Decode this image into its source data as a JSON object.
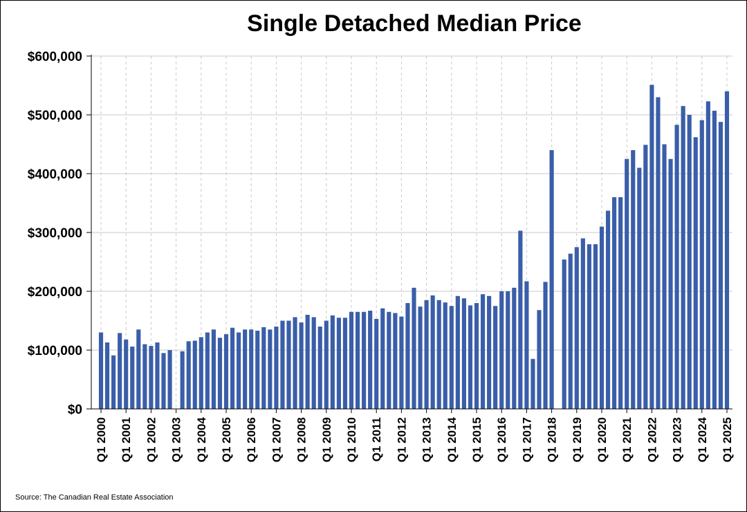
{
  "chart_data": {
    "type": "bar",
    "title": "Single Detached Median Price",
    "source": "Source: The Canadian Real Estate Association",
    "ylim": [
      0,
      600000
    ],
    "y_ticks": [
      "$0",
      "$100,000",
      "$200,000",
      "$300,000",
      "$400,000",
      "$500,000",
      "$600,000"
    ],
    "y_tick_values": [
      0,
      100000,
      200000,
      300000,
      400000,
      500000,
      600000
    ],
    "x_tick_labels": [
      "Q1 2000",
      "Q1 2001",
      "Q1 2002",
      "Q1 2003",
      "Q1 2004",
      "Q1 2005",
      "Q1 2006",
      "Q1 2007",
      "Q1 2008",
      "Q1 2009",
      "Q1 2010",
      "Q1 2011",
      "Q1 2012",
      "Q1 2013",
      "Q1 2014",
      "Q1 2015",
      "Q1 2016",
      "Q1 2017",
      "Q1 2018",
      "Q1 2019",
      "Q1 2020",
      "Q1 2021",
      "Q1 2022",
      "Q1 2023",
      "Q1 2024",
      "Q1 2025"
    ],
    "grid": "horizontal solid, vertical dashed at year ticks",
    "bar_color": "#3a5ea8",
    "categories": [
      "Q1 2000",
      "Q2 2000",
      "Q3 2000",
      "Q4 2000",
      "Q1 2001",
      "Q2 2001",
      "Q3 2001",
      "Q4 2001",
      "Q1 2002",
      "Q2 2002",
      "Q3 2002",
      "Q4 2002",
      "Q1 2003",
      "Q2 2003",
      "Q3 2003",
      "Q4 2003",
      "Q1 2004",
      "Q2 2004",
      "Q3 2004",
      "Q4 2004",
      "Q1 2005",
      "Q2 2005",
      "Q3 2005",
      "Q4 2005",
      "Q1 2006",
      "Q2 2006",
      "Q3 2006",
      "Q4 2006",
      "Q1 2007",
      "Q2 2007",
      "Q3 2007",
      "Q4 2007",
      "Q1 2008",
      "Q2 2008",
      "Q3 2008",
      "Q4 2008",
      "Q1 2009",
      "Q2 2009",
      "Q3 2009",
      "Q4 2009",
      "Q1 2010",
      "Q2 2010",
      "Q3 2010",
      "Q4 2010",
      "Q1 2011",
      "Q2 2011",
      "Q3 2011",
      "Q4 2011",
      "Q1 2012",
      "Q2 2012",
      "Q3 2012",
      "Q4 2012",
      "Q1 2013",
      "Q2 2013",
      "Q3 2013",
      "Q4 2013",
      "Q1 2014",
      "Q2 2014",
      "Q3 2014",
      "Q4 2014",
      "Q1 2015",
      "Q2 2015",
      "Q3 2015",
      "Q4 2015",
      "Q1 2016",
      "Q2 2016",
      "Q3 2016",
      "Q4 2016",
      "Q1 2017",
      "Q2 2017",
      "Q3 2017",
      "Q4 2017",
      "Q1 2018",
      "Q2 2018",
      "Q3 2018",
      "Q4 2018",
      "Q1 2019",
      "Q2 2019",
      "Q3 2019",
      "Q4 2019",
      "Q1 2020",
      "Q2 2020",
      "Q3 2020",
      "Q4 2020",
      "Q1 2021",
      "Q2 2021",
      "Q3 2021",
      "Q4 2021",
      "Q1 2022",
      "Q2 2022",
      "Q3 2022",
      "Q4 2022",
      "Q1 2023",
      "Q2 2023",
      "Q3 2023",
      "Q4 2023",
      "Q1 2024",
      "Q2 2024",
      "Q3 2024",
      "Q4 2024",
      "Q1 2025"
    ],
    "values": [
      130000,
      113000,
      91000,
      129000,
      118000,
      106000,
      135000,
      110000,
      107000,
      113000,
      95000,
      100000,
      null,
      98000,
      115000,
      116000,
      122000,
      130000,
      135000,
      121000,
      127000,
      138000,
      130000,
      135000,
      135000,
      133000,
      139000,
      135000,
      140000,
      150000,
      150000,
      156000,
      147000,
      160000,
      156000,
      140000,
      150000,
      159000,
      155000,
      155000,
      165000,
      165000,
      165000,
      167000,
      153000,
      171000,
      165000,
      163000,
      157000,
      180000,
      206000,
      174000,
      185000,
      193000,
      185000,
      181000,
      175000,
      192000,
      188000,
      176000,
      180000,
      195000,
      192000,
      175000,
      200000,
      200000,
      206000,
      303000,
      217000,
      85000,
      168000,
      216000,
      440000,
      null,
      254000,
      264000,
      275000,
      290000,
      280000,
      280000,
      310000,
      337000,
      360000,
      360000,
      425000,
      440000,
      410000,
      449000,
      551000,
      530000,
      450000,
      425000,
      483000,
      515000,
      500000,
      462000,
      491000,
      523000,
      507000,
      488000,
      540000
    ]
  }
}
